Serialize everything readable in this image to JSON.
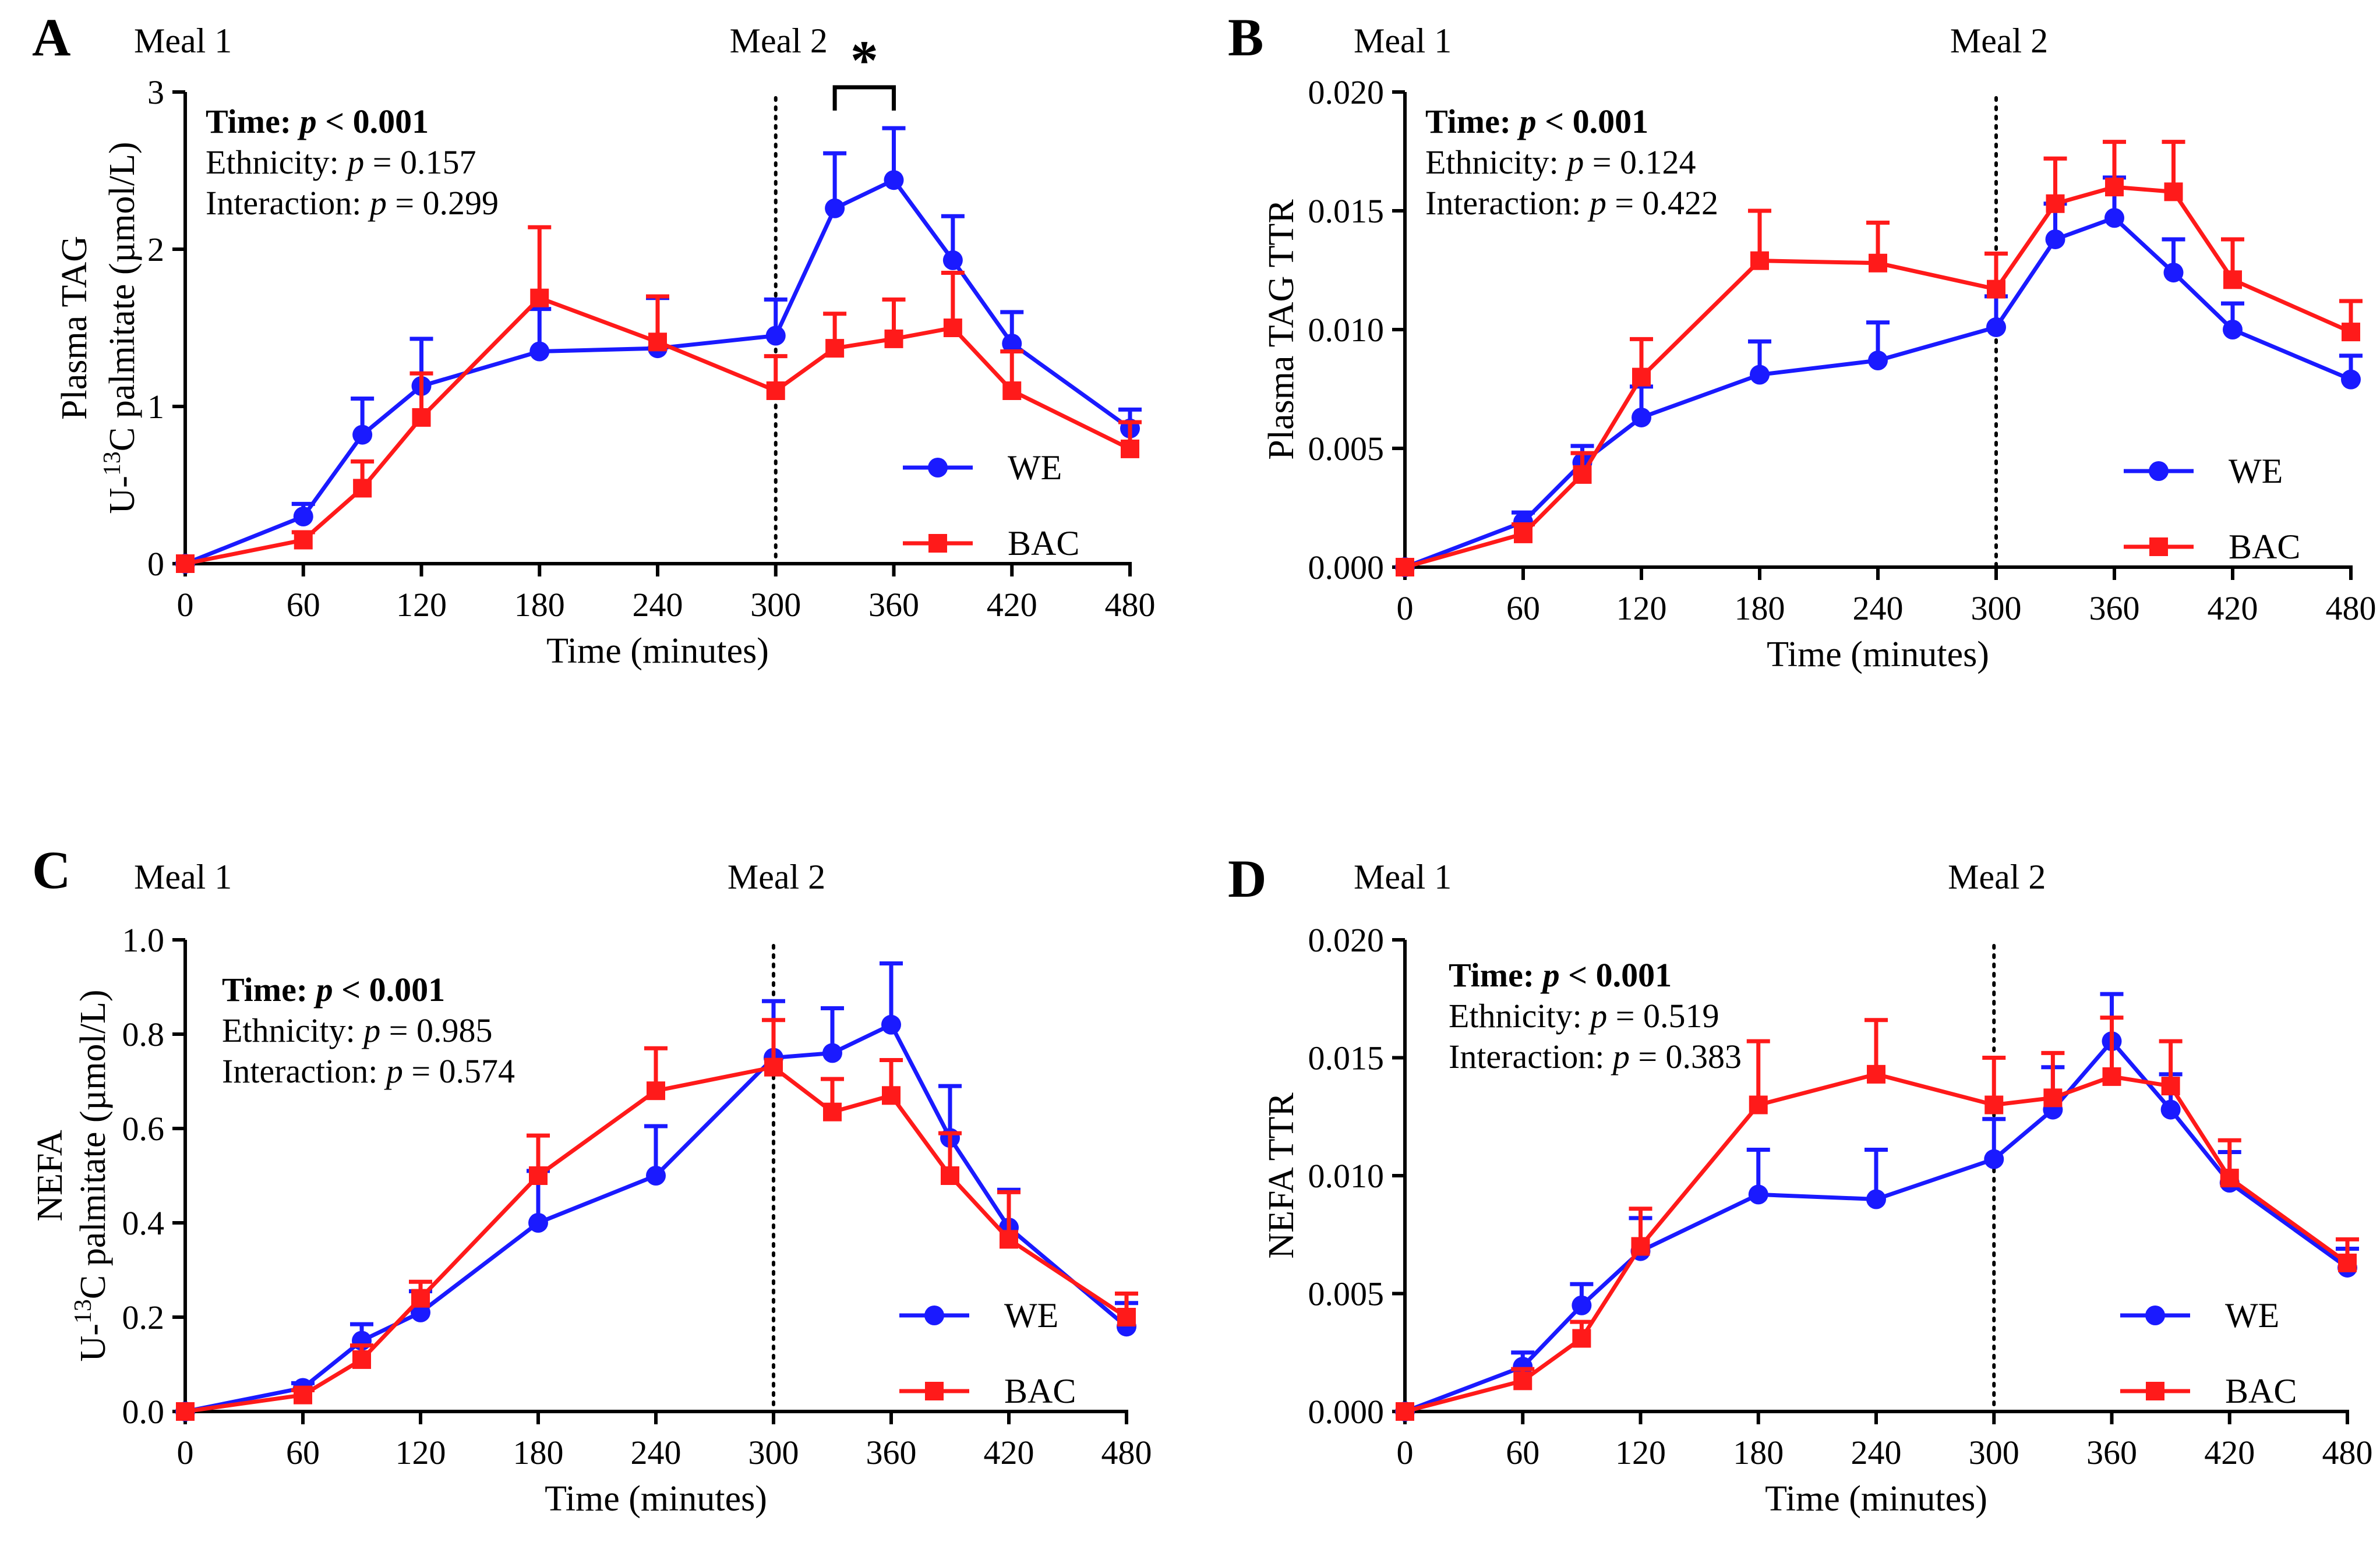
{
  "chart_data": [
    {
      "type": "line",
      "panel_letter": "A",
      "xlabel": "Time (minutes)",
      "ylabel_line1": "Plasma TAG",
      "ylabel_line2_prefix": "U-",
      "ylabel_line2_sup": "13",
      "ylabel_line2_suffix": "C palmitate (µmol/L)",
      "xlim": [
        0,
        480
      ],
      "ylim": [
        0,
        3
      ],
      "x_ticks": [
        "0",
        "60",
        "120",
        "180",
        "240",
        "300",
        "360",
        "420",
        "480"
      ],
      "y_ticks": [
        "0",
        "1",
        "2",
        "3"
      ],
      "meal_markers": [
        {
          "label": "Meal 1",
          "x": 0
        },
        {
          "label": "Meal 2",
          "x": 300
        }
      ],
      "stats": {
        "time": {
          "prefix": "Time: ",
          "p": "p",
          "rest": " < 0.001"
        },
        "ethnicity": {
          "prefix": "Ethnicity: ",
          "p": "p",
          "rest": " = 0.157"
        },
        "interaction": {
          "prefix": "Interaction: ",
          "p": "p",
          "rest": " = 0.299"
        }
      },
      "significance": {
        "label": "*",
        "x_start": 330,
        "x_end": 360,
        "y": 3.03
      },
      "legend": [
        "WE",
        "BAC"
      ],
      "series": [
        {
          "name": "WE",
          "color": "#1a1aff",
          "marker": "circle",
          "x": [
            0,
            60,
            90,
            120,
            180,
            240,
            300,
            330,
            360,
            390,
            420,
            480
          ],
          "y": [
            0,
            0.3,
            0.82,
            1.13,
            1.35,
            1.37,
            1.45,
            2.26,
            2.44,
            1.93,
            1.4,
            0.86
          ],
          "err": [
            0,
            0.08,
            0.23,
            0.3,
            0.27,
            0.32,
            0.23,
            0.35,
            0.33,
            0.28,
            0.2,
            0.12
          ]
        },
        {
          "name": "BAC",
          "color": "#ff1a1a",
          "marker": "square",
          "x": [
            0,
            60,
            90,
            120,
            180,
            240,
            300,
            330,
            360,
            390,
            420,
            480
          ],
          "y": [
            0,
            0.15,
            0.48,
            0.93,
            1.69,
            1.41,
            1.1,
            1.37,
            1.43,
            1.5,
            1.1,
            0.73
          ],
          "err": [
            0,
            0.05,
            0.17,
            0.28,
            0.45,
            0.29,
            0.22,
            0.22,
            0.25,
            0.35,
            0.25,
            0.17
          ]
        }
      ]
    },
    {
      "type": "line",
      "panel_letter": "B",
      "xlabel": "Time (minutes)",
      "ylabel_line1": "Plasma TAG TTR",
      "ylabel_line2_prefix": "",
      "ylabel_line2_sup": "",
      "ylabel_line2_suffix": "",
      "xlim": [
        0,
        480
      ],
      "ylim": [
        0,
        0.02
      ],
      "x_ticks": [
        "0",
        "60",
        "120",
        "180",
        "240",
        "300",
        "360",
        "420",
        "480"
      ],
      "y_ticks": [
        "0.000",
        "0.005",
        "0.010",
        "0.015",
        "0.020"
      ],
      "meal_markers": [
        {
          "label": "Meal 1",
          "x": 0
        },
        {
          "label": "Meal 2",
          "x": 300
        }
      ],
      "stats": {
        "time": {
          "prefix": "Time: ",
          "p": "p",
          "rest": " < 0.001"
        },
        "ethnicity": {
          "prefix": "Ethnicity: ",
          "p": "p",
          "rest": " = 0.124"
        },
        "interaction": {
          "prefix": "Interaction: ",
          "p": "p",
          "rest": " = 0.422"
        }
      },
      "legend": [
        "WE",
        "BAC"
      ],
      "series": [
        {
          "name": "WE",
          "color": "#1a1aff",
          "marker": "circle",
          "x": [
            0,
            60,
            90,
            120,
            180,
            240,
            300,
            330,
            360,
            390,
            420,
            480
          ],
          "y": [
            0,
            0.0019,
            0.0044,
            0.0063,
            0.0081,
            0.0087,
            0.0101,
            0.0138,
            0.0147,
            0.0124,
            0.01,
            0.0079
          ],
          "err": [
            0,
            0.0004,
            0.0007,
            0.0013,
            0.0014,
            0.0016,
            0.0013,
            0.0015,
            0.0017,
            0.0014,
            0.0011,
            0.001
          ]
        },
        {
          "name": "BAC",
          "color": "#ff1a1a",
          "marker": "square",
          "x": [
            0,
            60,
            90,
            120,
            180,
            240,
            300,
            330,
            360,
            390,
            420,
            480
          ],
          "y": [
            0,
            0.0014,
            0.0039,
            0.008,
            0.0129,
            0.0128,
            0.0117,
            0.0153,
            0.016,
            0.0158,
            0.0121,
            0.0099
          ],
          "err": [
            0,
            0.0004,
            0.0009,
            0.0016,
            0.0021,
            0.0017,
            0.0015,
            0.0019,
            0.0019,
            0.0021,
            0.0017,
            0.0013
          ]
        }
      ]
    },
    {
      "type": "line",
      "panel_letter": "C",
      "xlabel": "Time (minutes)",
      "ylabel_line1": "NEFA",
      "ylabel_line2_prefix": "U-",
      "ylabel_line2_sup": "13",
      "ylabel_line2_suffix": "C palmitate (µmol/L)",
      "xlim": [
        0,
        480
      ],
      "ylim": [
        0,
        1.0
      ],
      "x_ticks": [
        "0",
        "60",
        "120",
        "180",
        "240",
        "300",
        "360",
        "420",
        "480"
      ],
      "y_ticks": [
        "0.0",
        "0.2",
        "0.4",
        "0.6",
        "0.8",
        "1.0"
      ],
      "meal_markers": [
        {
          "label": "Meal 1",
          "x": 0
        },
        {
          "label": "Meal 2",
          "x": 300
        }
      ],
      "stats": {
        "time": {
          "prefix": "Time: ",
          "p": "p",
          "rest": " < 0.001"
        },
        "ethnicity": {
          "prefix": "Ethnicity: ",
          "p": "p",
          "rest": " = 0.985"
        },
        "interaction": {
          "prefix": "Interaction: ",
          "p": "p",
          "rest": " = 0.574"
        }
      },
      "legend": [
        "WE",
        "BAC"
      ],
      "series": [
        {
          "name": "WE",
          "color": "#1a1aff",
          "marker": "circle",
          "x": [
            0,
            60,
            90,
            120,
            180,
            240,
            300,
            330,
            360,
            390,
            420,
            480
          ],
          "y": [
            0,
            0.05,
            0.15,
            0.21,
            0.4,
            0.5,
            0.75,
            0.76,
            0.82,
            0.58,
            0.39,
            0.18
          ],
          "err": [
            0,
            0.01,
            0.035,
            0.045,
            0.11,
            0.105,
            0.12,
            0.095,
            0.13,
            0.11,
            0.08,
            0.05
          ]
        },
        {
          "name": "BAC",
          "color": "#ff1a1a",
          "marker": "square",
          "x": [
            0,
            60,
            90,
            120,
            180,
            240,
            300,
            330,
            360,
            390,
            420,
            480
          ],
          "y": [
            0,
            0.035,
            0.11,
            0.24,
            0.5,
            0.68,
            0.73,
            0.635,
            0.67,
            0.5,
            0.365,
            0.2
          ],
          "err": [
            0,
            0.01,
            0.03,
            0.035,
            0.085,
            0.09,
            0.1,
            0.07,
            0.075,
            0.09,
            0.1,
            0.05
          ]
        }
      ]
    },
    {
      "type": "line",
      "panel_letter": "D",
      "xlabel": "Time (minutes)",
      "ylabel_line1": "NEFA TTR",
      "ylabel_line2_prefix": "",
      "ylabel_line2_sup": "",
      "ylabel_line2_suffix": "",
      "xlim": [
        0,
        480
      ],
      "ylim": [
        0,
        0.02
      ],
      "x_ticks": [
        "0",
        "60",
        "120",
        "180",
        "240",
        "300",
        "360",
        "420",
        "480"
      ],
      "y_ticks": [
        "0.000",
        "0.005",
        "0.010",
        "0.015",
        "0.020"
      ],
      "meal_markers": [
        {
          "label": "Meal 1",
          "x": 0
        },
        {
          "label": "Meal 2",
          "x": 300
        }
      ],
      "stats": {
        "time": {
          "prefix": "Time: ",
          "p": "p",
          "rest": " < 0.001"
        },
        "ethnicity": {
          "prefix": "Ethnicity: ",
          "p": "p",
          "rest": " = 0.519"
        },
        "interaction": {
          "prefix": "Interaction: ",
          "p": "p",
          "rest": " = 0.383"
        }
      },
      "legend": [
        "WE",
        "BAC"
      ],
      "series": [
        {
          "name": "WE",
          "color": "#1a1aff",
          "marker": "circle",
          "x": [
            0,
            60,
            90,
            120,
            180,
            240,
            300,
            330,
            360,
            390,
            420,
            480
          ],
          "y": [
            0,
            0.0019,
            0.0045,
            0.0068,
            0.0092,
            0.009,
            0.0107,
            0.0128,
            0.0157,
            0.0128,
            0.0097,
            0.0061
          ],
          "err": [
            0,
            0.0006,
            0.0009,
            0.0014,
            0.0019,
            0.0021,
            0.0017,
            0.0018,
            0.002,
            0.0015,
            0.0013,
            0.0008
          ]
        },
        {
          "name": "BAC",
          "color": "#ff1a1a",
          "marker": "square",
          "x": [
            0,
            60,
            90,
            120,
            180,
            240,
            300,
            330,
            360,
            390,
            420,
            480
          ],
          "y": [
            0,
            0.0013,
            0.0031,
            0.007,
            0.013,
            0.0143,
            0.013,
            0.0133,
            0.0142,
            0.0138,
            0.0099,
            0.0063
          ],
          "err": [
            0,
            0.0005,
            0.0007,
            0.0016,
            0.0027,
            0.0023,
            0.002,
            0.0019,
            0.0025,
            0.0019,
            0.0016,
            0.001
          ]
        }
      ]
    }
  ]
}
